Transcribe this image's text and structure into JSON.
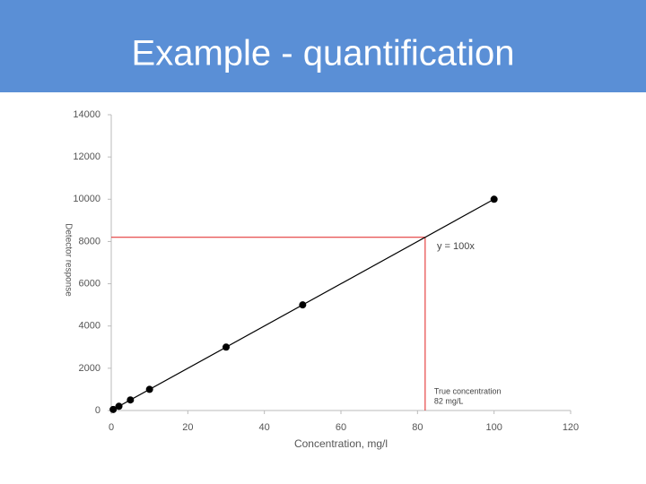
{
  "slide_title": "Example - quantification",
  "chart_data": {
    "type": "scatter",
    "x": [
      0.5,
      2,
      5,
      10,
      30,
      50,
      100
    ],
    "values": [
      50,
      200,
      500,
      1000,
      3000,
      5000,
      10000
    ],
    "color": "#000000",
    "x_label": "Concentration, mg/l",
    "y_label": "Detector response",
    "xlim": [
      0,
      120
    ],
    "xticks": [
      0,
      20,
      40,
      60,
      80,
      100,
      120
    ],
    "ylim": [
      0,
      14000
    ],
    "yticks": [
      0,
      2000,
      4000,
      6000,
      8000,
      10000,
      12000,
      14000
    ],
    "grid": false,
    "trendline": {
      "label": "y = 100x",
      "x": [
        0,
        100
      ],
      "values": [
        0,
        10000
      ],
      "color": "#000000"
    },
    "reading": {
      "label_lines": [
        "True concentration",
        "82 mg/L"
      ],
      "x": 82,
      "y": 8200,
      "color": "#e02020"
    }
  }
}
